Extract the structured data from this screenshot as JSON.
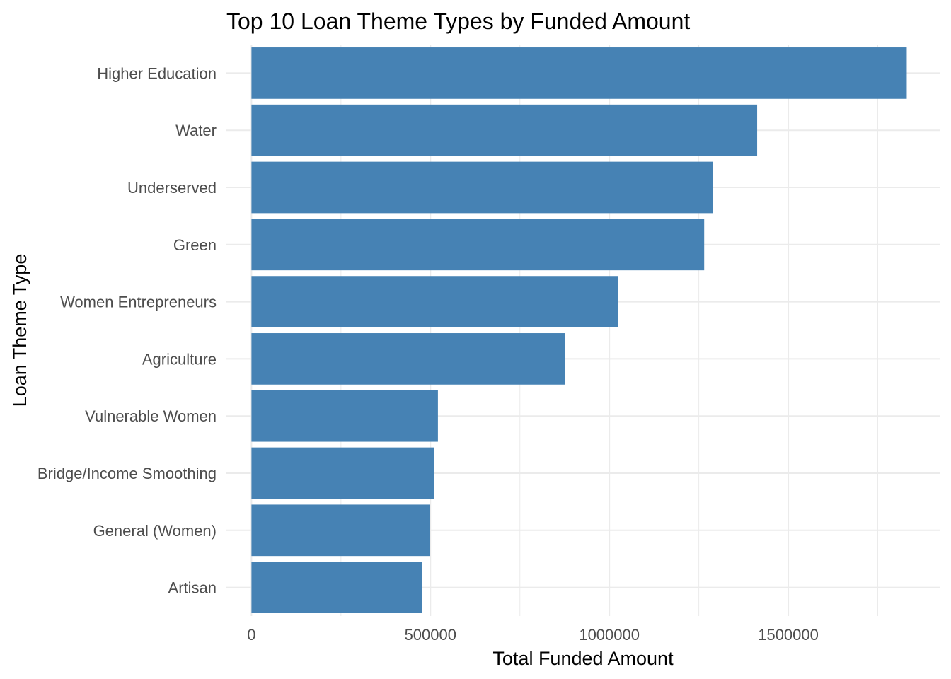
{
  "chart_data": {
    "type": "bar",
    "orientation": "horizontal",
    "title": "Top 10 Loan Theme Types by Funded Amount",
    "xlabel": "Total Funded Amount",
    "ylabel": "Loan Theme Type",
    "categories": [
      "Higher Education",
      "Water",
      "Underserved",
      "Green",
      "Women Entrepreneurs",
      "Agriculture",
      "Vulnerable Women",
      "Bridge/Income Smoothing",
      "General (Women)",
      "Artisan"
    ],
    "values": [
      1831000,
      1413000,
      1289000,
      1265000,
      1025000,
      877000,
      521000,
      511000,
      499000,
      477000
    ],
    "xlim": [
      -70000,
      1925000
    ],
    "x_ticks": [
      0,
      500000,
      1000000,
      1500000
    ],
    "x_tick_labels": [
      "0",
      "500000",
      "1000000",
      "1500000"
    ],
    "grid": true,
    "legend": "none",
    "bar_color": "#4682B4",
    "grid_color": "#EBEBEB"
  }
}
